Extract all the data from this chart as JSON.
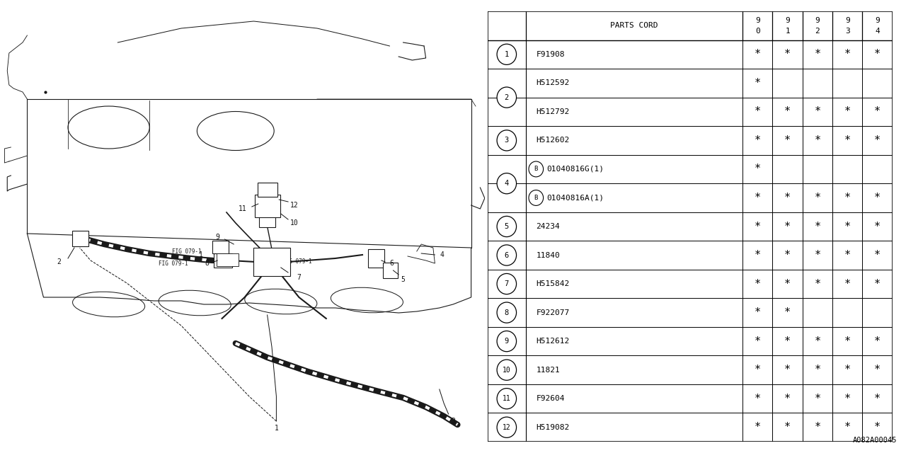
{
  "figure_id": "A082A00045",
  "table": {
    "header_col": "PARTS CORD",
    "year_cols": [
      "9\n0",
      "9\n1",
      "9\n2",
      "9\n3",
      "9\n4"
    ],
    "rows": [
      {
        "part": "F91908",
        "b_prefix": false,
        "marks": [
          true,
          true,
          true,
          true,
          true
        ]
      },
      {
        "part": "H512592",
        "b_prefix": false,
        "marks": [
          true,
          false,
          false,
          false,
          false
        ]
      },
      {
        "part": "H512792",
        "b_prefix": false,
        "marks": [
          true,
          true,
          true,
          true,
          true
        ]
      },
      {
        "part": "H512602",
        "b_prefix": false,
        "marks": [
          true,
          true,
          true,
          true,
          true
        ]
      },
      {
        "part": "01040816G(1)",
        "b_prefix": true,
        "marks": [
          true,
          false,
          false,
          false,
          false
        ]
      },
      {
        "part": "01040816A(1)",
        "b_prefix": true,
        "marks": [
          true,
          true,
          true,
          true,
          true
        ]
      },
      {
        "part": "24234",
        "b_prefix": false,
        "marks": [
          true,
          true,
          true,
          true,
          true
        ]
      },
      {
        "part": "11840",
        "b_prefix": false,
        "marks": [
          true,
          true,
          true,
          true,
          true
        ]
      },
      {
        "part": "H515842",
        "b_prefix": false,
        "marks": [
          true,
          true,
          true,
          true,
          true
        ]
      },
      {
        "part": "F922077",
        "b_prefix": false,
        "marks": [
          true,
          true,
          false,
          false,
          false
        ]
      },
      {
        "part": "H512612",
        "b_prefix": false,
        "marks": [
          true,
          true,
          true,
          true,
          true
        ]
      },
      {
        "part": "11821",
        "b_prefix": false,
        "marks": [
          true,
          true,
          true,
          true,
          true
        ]
      },
      {
        "part": "F92604",
        "b_prefix": false,
        "marks": [
          true,
          true,
          true,
          true,
          true
        ]
      },
      {
        "part": "H519082",
        "b_prefix": false,
        "marks": [
          true,
          true,
          true,
          true,
          true
        ]
      }
    ],
    "row_groups": [
      {
        "rows": [
          0
        ],
        "label": "1"
      },
      {
        "rows": [
          1,
          2
        ],
        "label": "2"
      },
      {
        "rows": [
          3
        ],
        "label": "3"
      },
      {
        "rows": [
          4,
          5
        ],
        "label": "4"
      },
      {
        "rows": [
          6
        ],
        "label": "5"
      },
      {
        "rows": [
          7
        ],
        "label": "6"
      },
      {
        "rows": [
          8
        ],
        "label": "7"
      },
      {
        "rows": [
          9
        ],
        "label": "8"
      },
      {
        "rows": [
          10
        ],
        "label": "9"
      },
      {
        "rows": [
          11
        ],
        "label": "10"
      },
      {
        "rows": [
          12
        ],
        "label": "11"
      },
      {
        "rows": [
          13
        ],
        "label": "12"
      }
    ]
  },
  "bg_color": "#ffffff",
  "line_color": "#000000",
  "font_color": "#000000",
  "font_size": 8.0,
  "star_char": "*"
}
